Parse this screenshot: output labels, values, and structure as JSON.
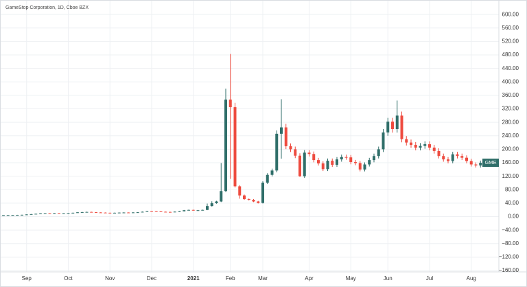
{
  "chart_data": {
    "type": "candlestick",
    "title": "GameStop Corporation, 1D, Cboe BZX",
    "symbol": "GME",
    "up_color": "#2f6e69",
    "down_color": "#ee4b3f",
    "grid": true,
    "categories": [
      null,
      null,
      null,
      null,
      null,
      "Sep",
      null,
      null,
      null,
      null,
      null,
      null,
      null,
      null,
      "Oct",
      null,
      null,
      null,
      null,
      null,
      null,
      null,
      null,
      "Nov",
      null,
      null,
      null,
      null,
      null,
      null,
      null,
      null,
      "Dec",
      null,
      null,
      null,
      null,
      null,
      null,
      null,
      null,
      "2021",
      null,
      null,
      null,
      null,
      null,
      null,
      null,
      "Feb",
      null,
      null,
      null,
      null,
      null,
      null,
      "Mar",
      null,
      null,
      null,
      null,
      null,
      null,
      null,
      null,
      null,
      "Apr",
      null,
      null,
      null,
      null,
      null,
      null,
      null,
      null,
      "May",
      null,
      null,
      null,
      null,
      null,
      null,
      null,
      "Jun",
      null,
      null,
      null,
      null,
      null,
      null,
      null,
      null,
      "Jul",
      null,
      null,
      null,
      null,
      null,
      null,
      null,
      null,
      "Aug",
      null,
      null
    ],
    "open": [
      4.3,
      4.5,
      4.8,
      5.0,
      5.2,
      5.5,
      6.5,
      7.5,
      8.5,
      9.5,
      10.2,
      9.8,
      10.5,
      9.8,
      10.0,
      10.5,
      11.5,
      12.8,
      13.5,
      14.0,
      13.2,
      12.5,
      12.0,
      11.5,
      11.0,
      11.5,
      12.0,
      12.3,
      12.2,
      12.5,
      13.0,
      14.5,
      16.5,
      16.0,
      15.5,
      14.5,
      14.0,
      13.5,
      14.8,
      16.0,
      19.0,
      20.0,
      18.5,
      19.0,
      20.0,
      31.4,
      39.9,
      45.0,
      76.0,
      347.5,
      325.0,
      90.0,
      63.0,
      52.0,
      50.0,
      45.0,
      40.6,
      101.0,
      124.0,
      137.0,
      246.0,
      265.0,
      209.0,
      200.0,
      181.0,
      120.0,
      190.0,
      186.0,
      168.0,
      158.0,
      141.0,
      166.0,
      154.0,
      170.0,
      177.0,
      176.0,
      162.0,
      159.0,
      140.0,
      155.0,
      168.0,
      180.0,
      200.0,
      250.0,
      282.0,
      260.0,
      300.0,
      230.0,
      220.0,
      213.0,
      205.0,
      210.0,
      215.0,
      205.0,
      195.0,
      180.0,
      170.0,
      165.0,
      185.0,
      180.0,
      175.0,
      165.0,
      155.0,
      152.0
    ],
    "high": [
      4.7,
      5.0,
      5.2,
      5.4,
      5.7,
      6.8,
      7.8,
      8.8,
      9.9,
      10.6,
      10.6,
      10.9,
      10.9,
      10.4,
      10.9,
      12.0,
      13.3,
      14.0,
      14.6,
      14.6,
      13.7,
      13.0,
      12.5,
      12.0,
      12.0,
      12.5,
      12.8,
      12.8,
      13.0,
      13.5,
      15.1,
      17.2,
      17.2,
      16.6,
      16.1,
      15.1,
      14.6,
      15.4,
      16.6,
      19.8,
      20.8,
      20.8,
      19.8,
      20.8,
      38.7,
      45.5,
      47.0,
      159.2,
      380.0,
      483.0,
      338.0,
      93.6,
      65.5,
      54.1,
      52.0,
      46.8,
      105.0,
      129.0,
      142.5,
      256.0,
      348.5,
      275.6,
      217.4,
      208.0,
      188.2,
      197.6,
      197.6,
      193.4,
      174.7,
      164.3,
      172.6,
      172.6,
      176.8,
      184.1,
      184.1,
      183.0,
      168.5,
      165.4,
      161.2,
      174.7,
      187.2,
      208.0,
      260.0,
      293.3,
      293.3,
      344.7,
      312.0,
      239.2,
      228.8,
      221.5,
      218.4,
      223.6,
      223.6,
      213.2,
      202.8,
      187.2,
      176.8,
      192.4,
      192.4,
      187.2,
      182.0,
      171.6,
      161.2,
      166.4
    ],
    "low": [
      4.1,
      4.4,
      4.6,
      4.8,
      5.0,
      5.3,
      6.2,
      7.2,
      8.2,
      9.1,
      9.4,
      9.4,
      9.4,
      9.4,
      9.6,
      10.1,
      11.0,
      12.3,
      13.0,
      12.7,
      12.0,
      11.5,
      11.0,
      10.6,
      10.6,
      11.0,
      11.5,
      11.7,
      11.7,
      12.0,
      12.5,
      13.9,
      15.4,
      14.9,
      13.9,
      13.4,
      13.0,
      13.0,
      14.2,
      15.4,
      18.2,
      17.8,
      17.8,
      18.2,
      19.2,
      30.1,
      38.3,
      43.2,
      73.0,
      112.3,
      86.4,
      53.3,
      49.9,
      48.0,
      43.2,
      39.0,
      39.0,
      97.0,
      119.0,
      131.5,
      172.0,
      200.6,
      192.0,
      173.8,
      118.0,
      115.2,
      178.6,
      161.3,
      151.7,
      135.4,
      135.4,
      147.8,
      147.8,
      163.2,
      169.0,
      155.5,
      152.6,
      134.4,
      134.4,
      148.8,
      161.3,
      172.8,
      192.0,
      240.0,
      249.6,
      249.6,
      220.8,
      211.2,
      204.5,
      196.8,
      196.8,
      201.6,
      196.8,
      187.2,
      172.8,
      163.2,
      158.4,
      158.4,
      172.8,
      168.0,
      158.4,
      148.8,
      145.9,
      145.9
    ],
    "close": [
      4.5,
      4.8,
      5.0,
      5.2,
      5.5,
      6.5,
      7.5,
      8.5,
      9.5,
      10.2,
      9.8,
      10.5,
      9.8,
      10.0,
      10.5,
      11.5,
      12.8,
      13.5,
      14.0,
      13.2,
      12.5,
      12.0,
      11.5,
      11.0,
      11.5,
      12.0,
      12.3,
      12.2,
      12.5,
      13.0,
      14.5,
      16.5,
      16.0,
      15.5,
      14.5,
      14.0,
      13.5,
      14.8,
      16.0,
      19.0,
      20.0,
      18.5,
      19.0,
      20.0,
      31.4,
      39.9,
      45.0,
      76.0,
      347.5,
      325.0,
      90.0,
      63.0,
      52.0,
      50.0,
      45.0,
      40.6,
      101.0,
      124.0,
      137.0,
      246.0,
      265.0,
      209.0,
      200.0,
      181.0,
      120.0,
      190.0,
      186.0,
      168.0,
      158.0,
      141.0,
      166.0,
      154.0,
      170.0,
      177.0,
      176.0,
      162.0,
      159.0,
      140.0,
      155.0,
      168.0,
      180.0,
      200.0,
      250.0,
      282.0,
      260.0,
      300.0,
      230.0,
      220.0,
      213.0,
      205.0,
      210.0,
      215.0,
      205.0,
      195.0,
      180.0,
      170.0,
      165.0,
      185.0,
      180.0,
      175.0,
      165.0,
      155.0,
      152.0,
      160.0
    ],
    "ylim": [
      -164,
      635
    ],
    "yticks": [
      {
        "value": 600,
        "label": "600.00"
      },
      {
        "value": 560,
        "label": "560.00"
      },
      {
        "value": 520,
        "label": "520.00"
      },
      {
        "value": 480,
        "label": "480.00"
      },
      {
        "value": 440,
        "label": "440.00"
      },
      {
        "value": 400,
        "label": "400.00"
      },
      {
        "value": 360,
        "label": "360.00"
      },
      {
        "value": 320,
        "label": "320.00"
      },
      {
        "value": 280,
        "label": "280.00"
      },
      {
        "value": 240,
        "label": "240.00"
      },
      {
        "value": 200,
        "label": "200.00"
      },
      {
        "value": 160,
        "label": "160.00"
      },
      {
        "value": 120,
        "label": "120.00"
      },
      {
        "value": 80,
        "label": "80.00"
      },
      {
        "value": 40,
        "label": "40.00"
      },
      {
        "value": 0,
        "label": "0.00"
      },
      {
        "value": -40,
        "label": "−40.00"
      },
      {
        "value": -80,
        "label": "−80.00"
      },
      {
        "value": -120,
        "label": "−120.00"
      },
      {
        "value": -160,
        "label": "−160.00"
      }
    ]
  }
}
